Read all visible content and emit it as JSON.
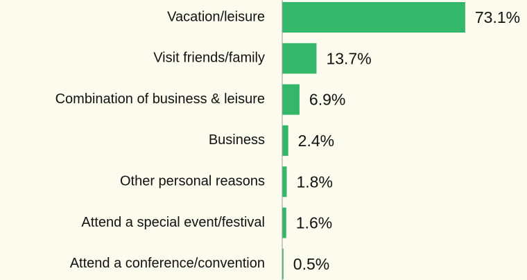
{
  "chart_data": {
    "type": "barh",
    "categories": [
      "Vacation/leisure",
      "Visit friends/family",
      "Combination of business & leisure",
      "Business",
      "Other personal reasons",
      "Attend a special event/festival",
      "Attend a conference/convention"
    ],
    "values": [
      73.1,
      13.7,
      6.9,
      2.4,
      1.8,
      1.6,
      0.5
    ],
    "value_labels": [
      "73.1%",
      "13.7%",
      "6.9%",
      "2.4%",
      "1.8%",
      "1.6%",
      "0.5%"
    ],
    "color": "#34b76a"
  }
}
